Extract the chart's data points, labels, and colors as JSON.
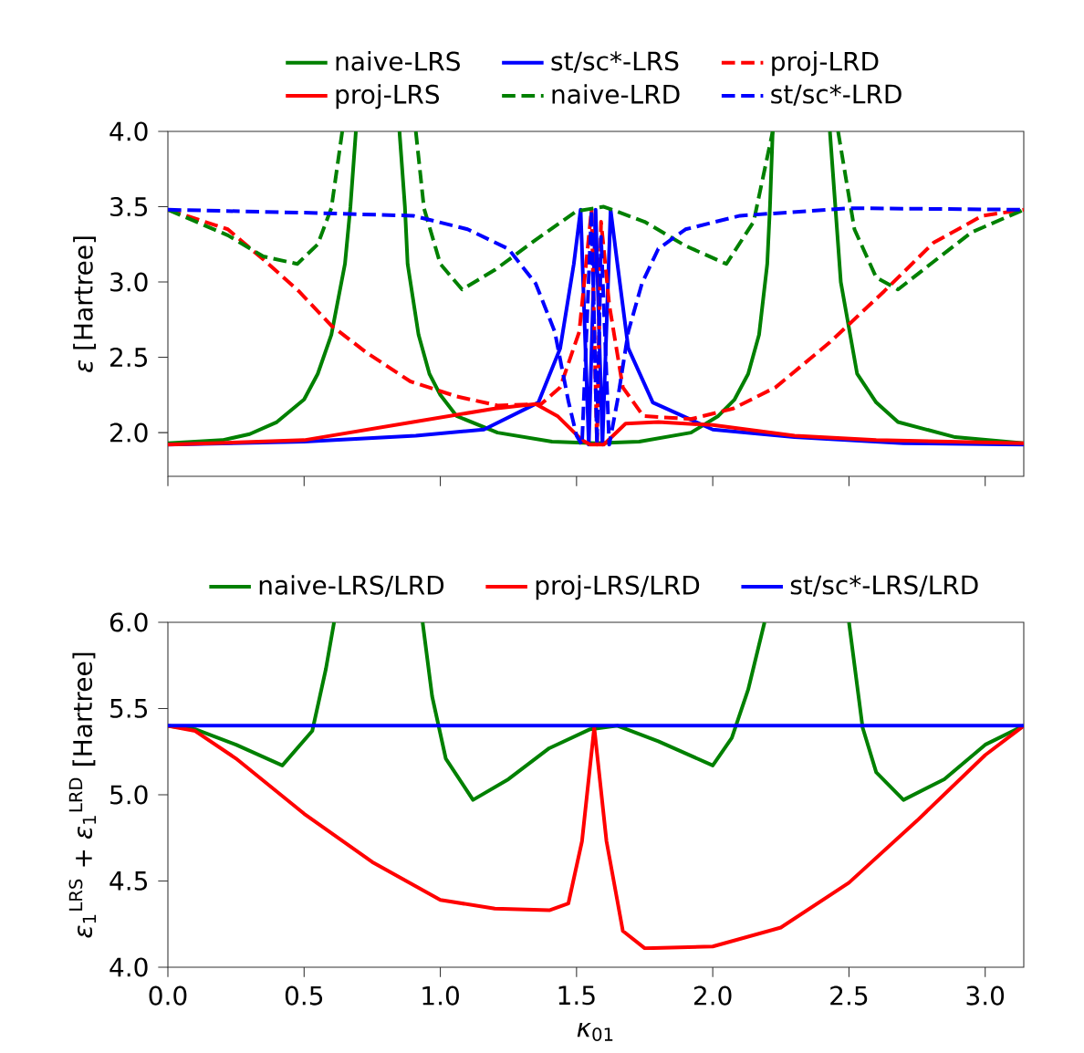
{
  "chart_data": [
    {
      "type": "line",
      "ylabel": "*ε* [Hartree]",
      "xlim": [
        0,
        3.1416
      ],
      "ylim": [
        1.71,
        4.0
      ],
      "xticks": [
        0,
        0.5,
        1,
        1.5,
        2,
        2.5,
        3
      ],
      "yticks": [
        {
          "value": 2,
          "label": "2.0"
        },
        {
          "value": 2.5,
          "label": "2.5"
        },
        {
          "value": 3,
          "label": "3.0"
        },
        {
          "value": 3.5,
          "label": "3.5"
        },
        {
          "value": 4,
          "label": "4.0"
        }
      ],
      "tick_labels": "y",
      "legend": "top",
      "grid": false,
      "marker": "none",
      "series": [
        {
          "name": "naive-LRS",
          "color": "#008000",
          "line_style": "solid",
          "x": [
            0,
            0.2,
            0.3,
            0.4,
            0.5,
            0.55,
            0.6,
            0.65,
            0.67,
            0.69,
            0.77,
            0.85,
            0.87,
            0.88,
            0.92,
            0.96,
            1.0,
            1.06,
            1.21,
            1.41,
            1.57,
            1.73,
            1.92,
            2.02,
            2.08,
            2.13,
            2.17,
            2.2,
            2.21,
            2.22,
            2.32,
            2.43,
            2.45,
            2.47,
            2.53,
            2.6,
            2.68,
            2.89,
            3.1416
          ],
          "values": [
            1.93,
            1.95,
            1.99,
            2.07,
            2.22,
            2.39,
            2.65,
            3.12,
            3.5,
            4.0,
            null,
            4.0,
            3.5,
            3.12,
            2.65,
            2.39,
            2.25,
            2.11,
            2.0,
            1.94,
            1.93,
            1.94,
            2.0,
            2.11,
            2.22,
            2.39,
            2.65,
            3.12,
            3.5,
            4.0,
            null,
            4.0,
            3.5,
            3.0,
            2.39,
            2.2,
            2.07,
            1.97,
            1.93
          ]
        },
        {
          "name": "st/sc*-LRS",
          "color": "#0000ff",
          "line_style": "solid",
          "x": [
            0,
            0.5,
            0.91,
            1.16,
            1.36,
            1.44,
            1.49,
            1.515,
            1.545,
            1.57,
            1.595,
            1.625,
            1.65,
            1.69,
            1.78,
            2.0,
            2.3,
            2.7,
            3.1416
          ],
          "values": [
            1.92,
            1.94,
            1.98,
            2.02,
            2.2,
            2.56,
            3.12,
            3.48,
            1.92,
            3.48,
            1.92,
            3.48,
            3.12,
            2.56,
            2.2,
            2.02,
            1.97,
            1.93,
            1.92
          ]
        },
        {
          "name": "proj-LRD",
          "color": "#ff0000",
          "line_style": "dashed",
          "x": [
            0,
            0.22,
            0.35,
            0.48,
            0.6,
            0.73,
            0.89,
            1.06,
            1.21,
            1.37,
            1.44,
            1.51,
            1.555,
            1.575,
            1.59,
            1.62,
            1.67,
            1.745,
            1.92,
            2.075,
            2.23,
            2.43,
            2.63,
            2.81,
            2.99,
            3.1416
          ],
          "values": [
            3.48,
            3.35,
            3.15,
            2.94,
            2.71,
            2.53,
            2.34,
            2.24,
            2.18,
            2.19,
            2.3,
            2.67,
            3.48,
            1.92,
            3.4,
            2.85,
            2.3,
            2.11,
            2.09,
            2.16,
            2.3,
            2.6,
            2.94,
            3.26,
            3.44,
            3.48
          ]
        },
        {
          "name": "proj-LRS",
          "color": "#ff0000",
          "line_style": "solid",
          "x": [
            0,
            0.5,
            0.9,
            1.2,
            1.35,
            1.43,
            1.52,
            1.55,
            1.6,
            1.68,
            1.8,
            2.0,
            2.3,
            2.6,
            3.1416
          ],
          "values": [
            1.92,
            1.95,
            2.07,
            2.16,
            2.19,
            2.11,
            1.95,
            1.92,
            1.92,
            2.06,
            2.07,
            2.05,
            1.98,
            1.95,
            1.93
          ]
        },
        {
          "name": "naive-LRD",
          "color": "#008000",
          "line_style": "dashed",
          "x": [
            0,
            0.22,
            0.35,
            0.475,
            0.55,
            0.6,
            0.64,
            0.78,
            0.91,
            0.94,
            1.0,
            1.08,
            1.2,
            1.35,
            1.5,
            1.6,
            1.75,
            1.9,
            2.05,
            2.15,
            2.22,
            2.34,
            2.46,
            2.52,
            2.6,
            2.68,
            2.8,
            2.95,
            3.1416
          ],
          "values": [
            3.48,
            3.31,
            3.17,
            3.12,
            3.25,
            3.49,
            4.0,
            null,
            4.0,
            3.49,
            3.12,
            2.95,
            3.08,
            3.28,
            3.47,
            3.5,
            3.4,
            3.24,
            3.12,
            3.4,
            4.0,
            null,
            4.0,
            3.35,
            3.03,
            2.95,
            3.12,
            3.33,
            3.48
          ]
        },
        {
          "name": "st/sc*-LRD",
          "color": "#0000ff",
          "line_style": "dashed",
          "x": [
            0,
            0.5,
            0.9,
            1.1,
            1.25,
            1.35,
            1.42,
            1.47,
            1.5,
            1.52,
            1.555,
            1.575,
            1.59,
            1.62,
            1.65,
            1.69,
            1.74,
            1.8,
            1.9,
            2.1,
            2.5,
            3.1416
          ],
          "values": [
            3.48,
            3.46,
            3.44,
            3.35,
            3.22,
            2.99,
            2.67,
            2.21,
            1.98,
            1.92,
            3.48,
            1.92,
            3.3,
            1.92,
            2.21,
            2.67,
            2.99,
            3.22,
            3.35,
            3.44,
            3.49,
            3.48
          ]
        }
      ]
    },
    {
      "type": "line",
      "xlabel": "*κ*$_{01}$",
      "ylabel": "*ε*$_{1}$$^{LRS}$ + *ε*$_{1}$$^{LRD}$ [Hartree]",
      "xlim": [
        0,
        3.1416
      ],
      "ylim": [
        4.0,
        6.0
      ],
      "xticks": [
        {
          "value": 0,
          "label": "0.0"
        },
        {
          "value": 0.5,
          "label": "0.5"
        },
        {
          "value": 1,
          "label": "1.0"
        },
        {
          "value": 1.5,
          "label": "1.5"
        },
        {
          "value": 2,
          "label": "2.0"
        },
        {
          "value": 2.5,
          "label": "2.5"
        },
        {
          "value": 3,
          "label": "3.0"
        }
      ],
      "yticks": [
        {
          "value": 4,
          "label": "4.0"
        },
        {
          "value": 4.5,
          "label": "4.5"
        },
        {
          "value": 5,
          "label": "5.0"
        },
        {
          "value": 5.5,
          "label": "5.5"
        },
        {
          "value": 6,
          "label": "6.0"
        }
      ],
      "legend": "top",
      "grid": false,
      "marker": "none",
      "series": [
        {
          "name": "naive-LRS/LRD",
          "color": "#008000",
          "line_style": "solid",
          "x": [
            0,
            0.1,
            0.25,
            0.42,
            0.53,
            0.58,
            0.61,
            0.77,
            0.935,
            0.97,
            1.02,
            1.12,
            1.25,
            1.4,
            1.55,
            1.65,
            1.8,
            2.0,
            2.07,
            2.13,
            2.19,
            2.35,
            2.5,
            2.55,
            2.6,
            2.7,
            2.85,
            3.0,
            3.1416
          ],
          "values": [
            5.4,
            5.38,
            5.29,
            5.17,
            5.37,
            5.73,
            6.0,
            null,
            6.0,
            5.57,
            5.21,
            4.97,
            5.09,
            5.27,
            5.38,
            5.4,
            5.31,
            5.17,
            5.33,
            5.61,
            6.0,
            null,
            6.0,
            5.39,
            5.13,
            4.97,
            5.09,
            5.29,
            5.4
          ]
        },
        {
          "name": "proj-LRS/LRD",
          "color": "#ff0000",
          "line_style": "solid",
          "x": [
            0,
            0.1,
            0.25,
            0.5,
            0.75,
            1.0,
            1.2,
            1.4,
            1.47,
            1.52,
            1.565,
            1.61,
            1.67,
            1.75,
            2.0,
            2.25,
            2.5,
            2.75,
            3.0,
            3.1416
          ],
          "values": [
            5.4,
            5.37,
            5.21,
            4.89,
            4.61,
            4.39,
            4.34,
            4.33,
            4.37,
            4.73,
            5.39,
            4.73,
            4.21,
            4.11,
            4.12,
            4.23,
            4.49,
            4.85,
            5.23,
            5.4
          ]
        },
        {
          "name": "st/sc*-LRS/LRD",
          "color": "#0000ff",
          "line_style": "solid",
          "x": [
            0,
            3.1416
          ],
          "values": [
            5.4,
            5.4
          ]
        }
      ]
    }
  ]
}
